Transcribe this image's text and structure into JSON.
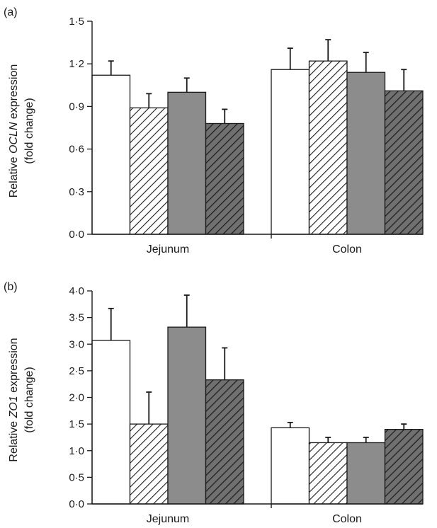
{
  "colors": {
    "bar_open": "#ffffff",
    "bar_grey": "#8c8c8c",
    "bar_dark_hatch_bg": "#707070",
    "stroke": "#1a1a1a"
  },
  "chart_data": [
    {
      "type": "bar",
      "panel_label": "(a)",
      "ylabel_prefix": "Relative ",
      "ylabel_gene": "OCLN",
      "ylabel_suffix": " expression",
      "ylabel_line2": "(fold change)",
      "categories": [
        "Jejunum",
        "Colon"
      ],
      "ylim": [
        0,
        1.5
      ],
      "yticks": [
        "0·0",
        "0·3",
        "0·6",
        "0·9",
        "1·2",
        "1·5"
      ],
      "ytick_values": [
        0,
        0.3,
        0.6,
        0.9,
        1.2,
        1.5
      ],
      "series": [
        {
          "fill": "open",
          "values": [
            1.12,
            1.16
          ],
          "errors": [
            0.1,
            0.15
          ]
        },
        {
          "fill": "hatch-light",
          "values": [
            0.89,
            1.22
          ],
          "errors": [
            0.1,
            0.15
          ]
        },
        {
          "fill": "grey",
          "values": [
            1.0,
            1.14
          ],
          "errors": [
            0.1,
            0.14
          ]
        },
        {
          "fill": "hatch-dark",
          "values": [
            0.78,
            1.01
          ],
          "errors": [
            0.1,
            0.15
          ]
        }
      ]
    },
    {
      "type": "bar",
      "panel_label": "(b)",
      "ylabel_prefix": "Relative ",
      "ylabel_gene": "ZO1",
      "ylabel_suffix": " expression",
      "ylabel_line2": "(fold change)",
      "categories": [
        "Jejunum",
        "Colon"
      ],
      "ylim": [
        0,
        4.0
      ],
      "yticks": [
        "0·0",
        "0·5",
        "1·0",
        "1·5",
        "2·0",
        "2·5",
        "3·0",
        "3·5",
        "4·0"
      ],
      "ytick_values": [
        0,
        0.5,
        1.0,
        1.5,
        2.0,
        2.5,
        3.0,
        3.5,
        4.0
      ],
      "series": [
        {
          "fill": "open",
          "values": [
            3.07,
            1.43
          ],
          "errors": [
            0.6,
            0.1
          ]
        },
        {
          "fill": "hatch-light",
          "values": [
            1.5,
            1.15
          ],
          "errors": [
            0.6,
            0.1
          ]
        },
        {
          "fill": "grey",
          "values": [
            3.32,
            1.15
          ],
          "errors": [
            0.6,
            0.1
          ]
        },
        {
          "fill": "hatch-dark",
          "values": [
            2.33,
            1.4
          ],
          "errors": [
            0.6,
            0.1
          ]
        }
      ]
    }
  ]
}
